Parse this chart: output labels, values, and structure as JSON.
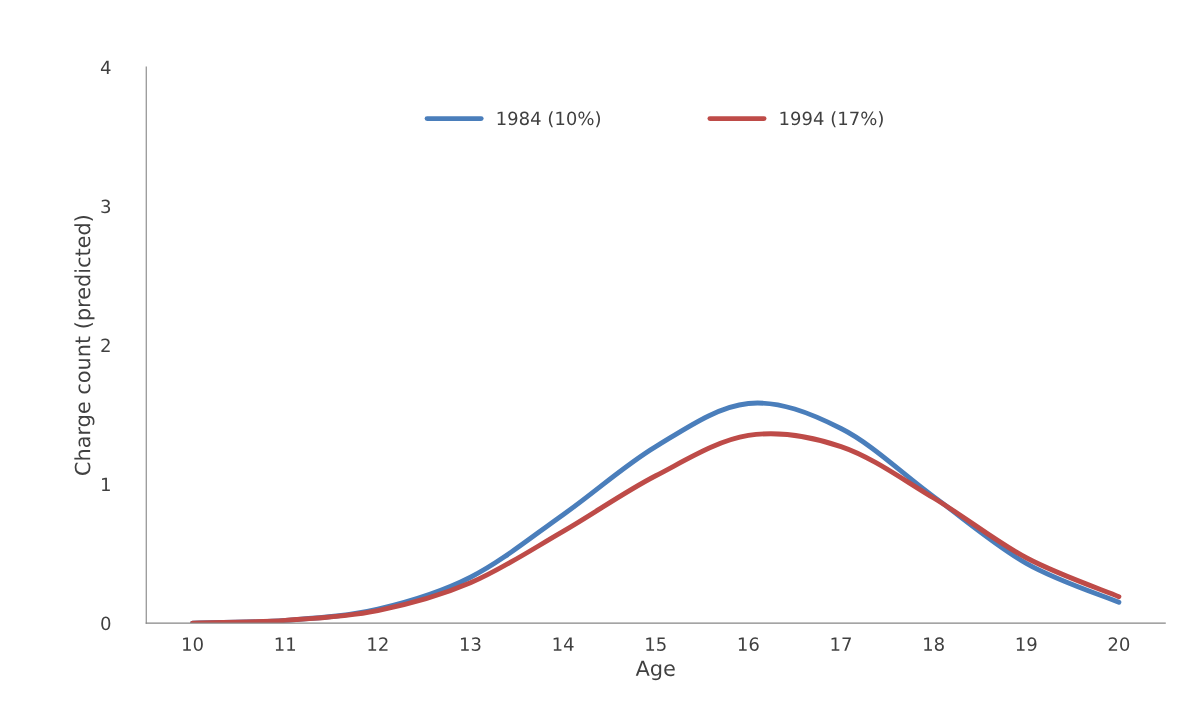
{
  "chart_data": {
    "type": "line",
    "xlabel": "Age",
    "ylabel": "Charge count (predicted)",
    "categories": [
      "10",
      "11",
      "12",
      "13",
      "14",
      "15",
      "16",
      "17",
      "18",
      "19",
      "20"
    ],
    "series": [
      {
        "name": "1984 (10%)",
        "color": "#4a7ebb",
        "values": [
          0.0,
          0.02,
          0.1,
          0.33,
          0.78,
          1.27,
          1.58,
          1.4,
          0.91,
          0.43,
          0.15
        ]
      },
      {
        "name": "1994 (17%)",
        "color": "#be4b48",
        "values": [
          0.0,
          0.02,
          0.09,
          0.29,
          0.66,
          1.06,
          1.35,
          1.27,
          0.9,
          0.47,
          0.19
        ]
      }
    ],
    "ylim": [
      0,
      4
    ],
    "yticks": [
      0,
      1,
      2,
      3,
      4
    ],
    "grid": false,
    "legend": "top",
    "marker": "none",
    "line_style": "solid"
  }
}
